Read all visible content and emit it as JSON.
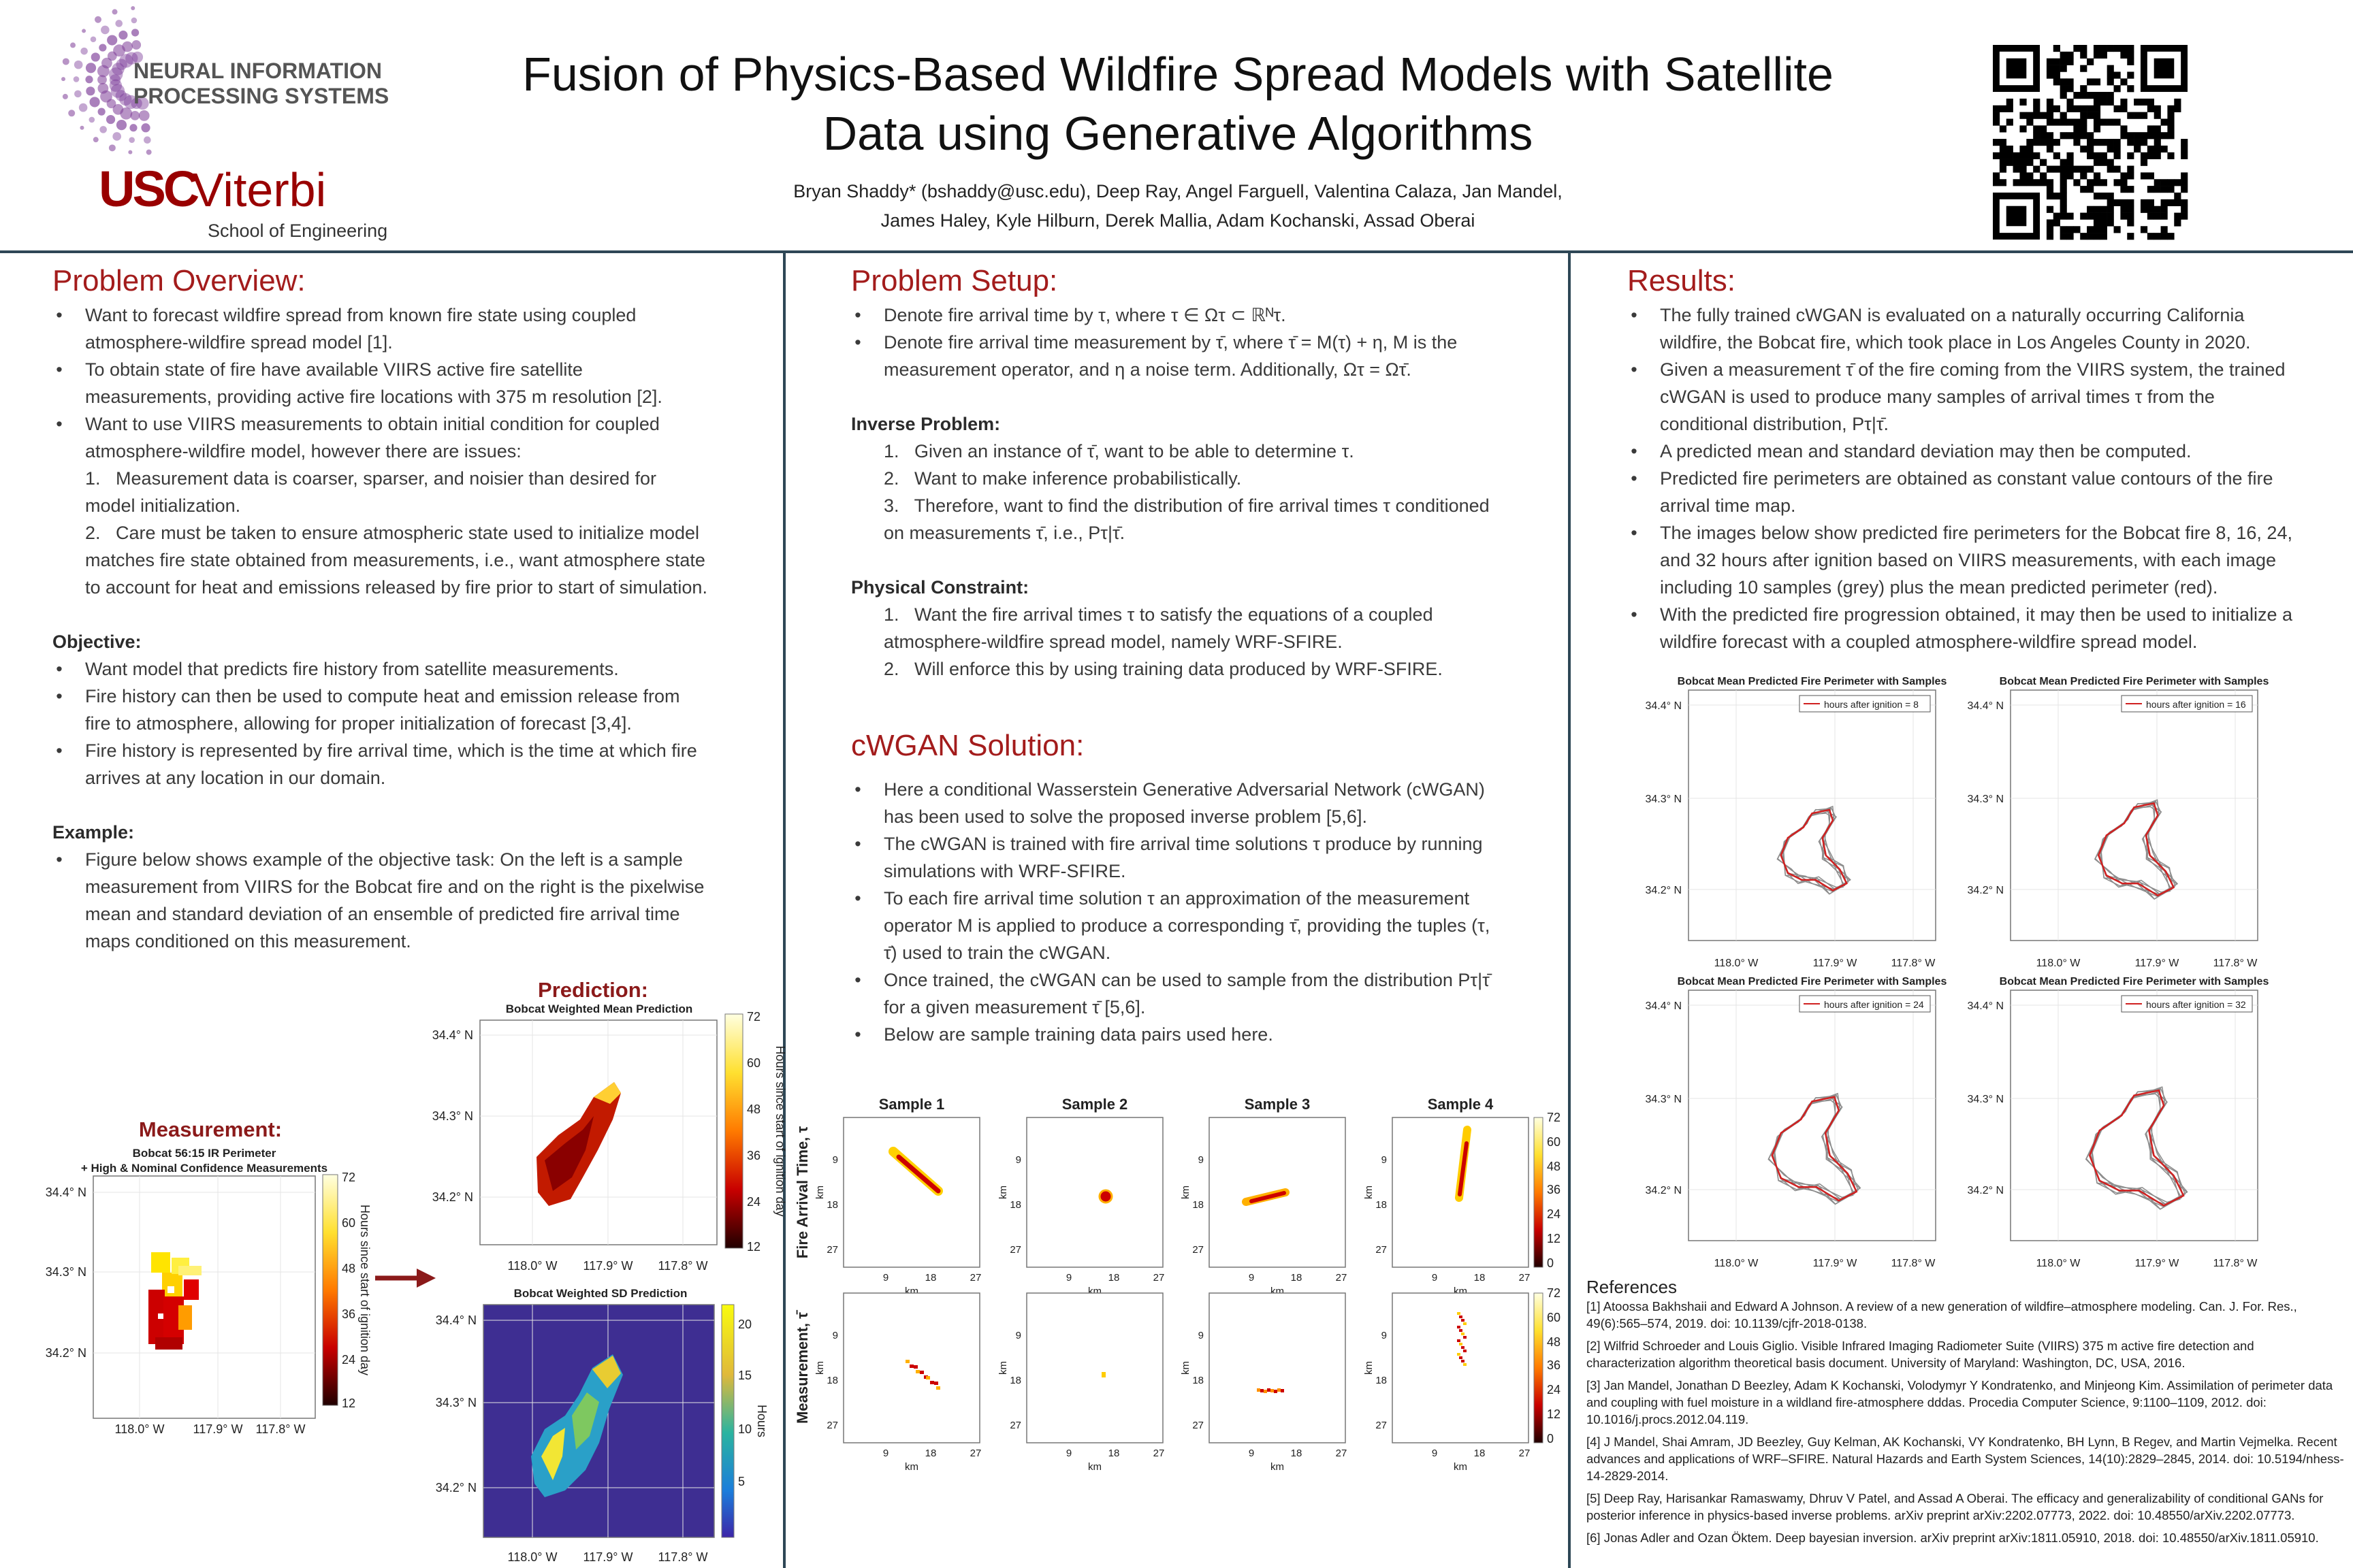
{
  "header": {
    "logo_neurips": [
      "NEURAL INFORMATION",
      "PROCESSING SYSTEMS"
    ],
    "logo_usc": "USC",
    "logo_viterbi": "Viterbi",
    "logo_school": "School of Engineering",
    "title": [
      "Fusion of Physics-Based Wildfire Spread Models with Satellite",
      "Data using Generative Algorithms"
    ],
    "authors": [
      "Bryan Shaddy* (bshaddy@usc.edu), Deep Ray, Angel Farguell, Valentina Calaza, Jan Mandel,",
      "James Haley, Kyle Hilburn, Derek Mallia, Adam Kochanski, Assad Oberai"
    ]
  },
  "problem_overview": {
    "heading": "Problem Overview:",
    "bullets": [
      "Want to forecast wildfire spread from known fire state using coupled atmosphere-wildfire spread model [1].",
      "To obtain state of fire have available VIIRS active fire satellite measurements, providing active fire locations with 375 m resolution [2].",
      "Want to use VIIRS measurements to obtain initial condition for coupled atmosphere-wildfire model, however there are issues:"
    ],
    "issues": [
      "Measurement data is coarser, sparser, and noisier than desired for model initialization.",
      "Care must be taken to ensure atmospheric state used to initialize model matches fire state obtained from measurements, i.e., want atmosphere state to account for heat and emissions released by fire prior to start of simulation."
    ],
    "objective": {
      "heading": "Objective:",
      "bullets": [
        "Want model that predicts fire history from satellite measurements.",
        "Fire history can then be used to compute heat and emission release from fire to atmosphere, allowing for proper initialization of forecast [3,4].",
        "Fire history is represented by fire arrival time, which is the time at which fire arrives at any location in our domain."
      ]
    },
    "example": {
      "heading": "Example:",
      "bullets": [
        "Figure below shows example of the objective task: On the left is a sample measurement from VIIRS for the Bobcat fire and on the right is the pixelwise mean and standard deviation of an ensemble of predicted fire arrival time maps conditioned on this measurement."
      ]
    }
  },
  "problem_setup": {
    "heading": "Problem Setup:",
    "bullets": [
      "Denote fire arrival time by τ, where τ ∈ Ωτ ⊂ ℝᴺτ.",
      "Denote fire arrival time measurement by τ̄, where τ̄ = M(τ) + η, M is the measurement operator, and η a noise term. Additionally, Ωτ = Ωτ̄."
    ],
    "inverse": {
      "heading": "Inverse Problem:",
      "items": [
        "Given an instance of τ̄, want to be able to determine τ.",
        "Want to make inference probabilistically.",
        "Therefore, want to find the distribution of fire arrival times τ conditioned on measurements τ̄, i.e., Pτ|τ̄."
      ]
    },
    "physical": {
      "heading": "Physical Constraint:",
      "items": [
        "Want the fire arrival times τ to satisfy the equations of a coupled atmosphere-wildfire spread model, namely WRF-SFIRE.",
        "Will enforce this by using training data produced by WRF-SFIRE."
      ]
    }
  },
  "cwgan": {
    "heading": "cWGAN Solution:",
    "bullets": [
      "Here a conditional Wasserstein Generative Adversarial Network (cWGAN) has been used to solve the proposed inverse problem [5,6].",
      "The cWGAN is trained with fire arrival time solutions τ produce by running simulations with WRF-SFIRE.",
      "To each fire arrival time solution τ  an approximation of the measurement operator M is applied to produce a corresponding τ̄, providing the tuples (τ, τ̄) used to train the cWGAN.",
      "Once trained, the cWGAN can be used to sample from the distribution Pτ|τ̄ for a given measurement τ̄ [5,6].",
      "Below are sample training data pairs used here."
    ]
  },
  "results": {
    "heading": "Results:",
    "bullets": [
      "The fully trained cWGAN is evaluated on a naturally occurring California wildfire, the Bobcat fire, which took place in Los Angeles County in 2020.",
      "Given a measurement τ̄ of the fire coming from the VIIRS system, the trained cWGAN is used to produce many samples of arrival times τ from the conditional distribution, Pτ|τ̄.",
      "A predicted mean and standard deviation may then be computed.",
      "Predicted fire perimeters are obtained as constant value contours of the fire arrival time map.",
      "The images below show predicted fire perimeters for the Bobcat fire 8, 16, 24, and 32 hours after ignition based on VIIRS measurements, with each image including 10 samples (grey) plus the mean predicted perimeter (red).",
      "With the predicted fire progression obtained, it may then be used to initialize a wildfire forecast with a coupled atmosphere-wildfire spread model."
    ]
  },
  "map_yticks": [
    "34.4° N",
    "34.3° N",
    "34.2° N"
  ],
  "map_xticks": [
    "118.0° W",
    "117.9° W",
    "117.8° W"
  ],
  "measurement_figure": {
    "heading": "Measurement:",
    "title": [
      "Bobcat 56:15 IR Perimeter",
      "+ High & Nominal Confidence Measurements"
    ],
    "colorbar_ticks": [
      72,
      60,
      48,
      36,
      24,
      12
    ],
    "colorbar_label": "Hours since start of ignition day"
  },
  "prediction_figure": {
    "heading": "Prediction:",
    "mean_title": "Bobcat Weighted Mean Prediction",
    "mean_colorbar_ticks": [
      72,
      60,
      48,
      36,
      24,
      12
    ],
    "mean_colorbar_label": "Hours since start of ignition day",
    "sd_title": "Bobcat Weighted SD Prediction",
    "sd_colorbar_ticks": [
      20,
      15,
      10,
      5
    ],
    "sd_colorbar_label": "Hours"
  },
  "samples_figure": {
    "titles": [
      "Sample 1",
      "Sample 2",
      "Sample 3",
      "Sample 4"
    ],
    "row_labels": [
      "Fire Arrival Time, τ",
      "Measurement, τ̄"
    ],
    "ticks": [
      9,
      18,
      27
    ],
    "unit": "km",
    "colorbar_ticks": [
      72,
      60,
      48,
      36,
      24,
      12,
      0
    ]
  },
  "results_figures": {
    "title": "Bobcat Mean Predicted Fire Perimeter with Samples",
    "legends": [
      "hours after ignition = 8",
      "hours after ignition = 16",
      "hours after ignition = 24",
      "hours after ignition = 32"
    ]
  },
  "references": {
    "heading": "References",
    "items": [
      "[1] Atoossa Bakhshaii and Edward A Johnson. A review of a new generation of wildfire–atmosphere modeling. Can. J. For. Res., 49(6):565–574, 2019. doi: 10.1139/cjfr-2018-0138.",
      "[2] Wilfrid Schroeder and Louis Giglio. Visible Infrared Imaging Radiometer Suite (VIIRS) 375 m active fire detection and characterization algorithm theoretical basis document. University of Maryland: Washington, DC, USA, 2016.",
      "[3] Jan Mandel, Jonathan D Beezley, Adam K Kochanski, Volodymyr Y Kondratenko, and Minjeong Kim. Assimilation of perimeter data and coupling with fuel moisture in a wildland fire-atmosphere dddas. Procedia Computer Science, 9:1100–1109, 2012. doi: 10.1016/j.procs.2012.04.119.",
      "[4] J Mandel, Shai Amram, JD Beezley, Guy Kelman, AK Kochanski, VY Kondratenko, BH Lynn, B Regev, and Martin Vejmelka. Recent advances and applications of WRF–SFIRE. Natural Hazards and Earth System Sciences, 14(10):2829–2845, 2014. doi: 10.5194/nhess-14-2829-2014.",
      "[5] Deep Ray, Harisankar Ramaswamy, Dhruv V Patel, and Assad A Oberai. The efficacy and generalizability of conditional GANs for posterior inference in physics-based inverse problems. arXiv preprint arXiv:2202.07773, 2022. doi: 10.48550/arXiv.2202.07773.",
      "[6] Jonas Adler and Ozan Öktem. Deep bayesian inversion. arXiv preprint arXiv:1811.05910, 2018. doi: 10.48550/arXiv.1811.05910."
    ]
  }
}
